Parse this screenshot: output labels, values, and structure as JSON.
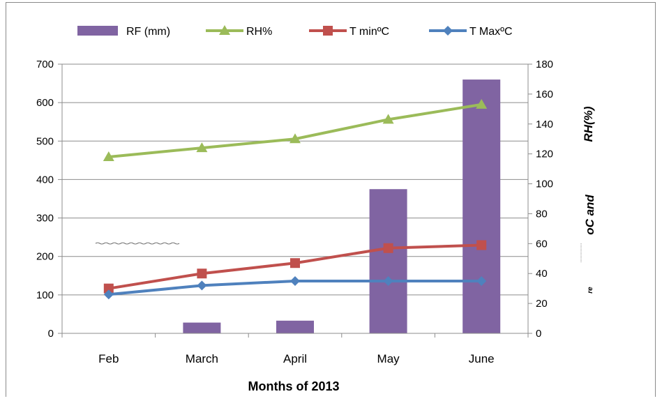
{
  "chart_data": {
    "type": "bar+line",
    "categories": [
      "Feb",
      "March",
      "April",
      "May",
      "June"
    ],
    "xlabel": "Months of 2013",
    "y_left": {
      "lim": [
        0,
        700
      ],
      "ticks": [
        0,
        100,
        200,
        300,
        400,
        500,
        600,
        700
      ]
    },
    "y_right": {
      "lim": [
        0,
        180
      ],
      "ticks": [
        0,
        20,
        40,
        60,
        80,
        100,
        120,
        140,
        160,
        180
      ],
      "label_parts": [
        "RH(%)",
        "oC and",
        "re"
      ]
    },
    "series": [
      {
        "name": "RF (mm)",
        "kind": "bar",
        "axis": "left",
        "color": "#8064a2",
        "values": [
          0,
          28,
          33,
          375,
          660
        ]
      },
      {
        "name": "RH%",
        "kind": "line",
        "axis": "right",
        "color": "#9bbb59",
        "marker": "triangle",
        "values": [
          118,
          124,
          130,
          143,
          153
        ]
      },
      {
        "name": "T minºC",
        "kind": "line",
        "axis": "right",
        "color": "#c0504d",
        "marker": "square",
        "values": [
          30,
          40,
          47,
          57,
          59
        ]
      },
      {
        "name": "T MaxºC",
        "kind": "line",
        "axis": "right",
        "color": "#4f81bd",
        "marker": "diamond",
        "values": [
          26,
          32,
          35,
          35,
          35
        ]
      }
    ],
    "legend_position": "top",
    "grid": "horizontal"
  }
}
